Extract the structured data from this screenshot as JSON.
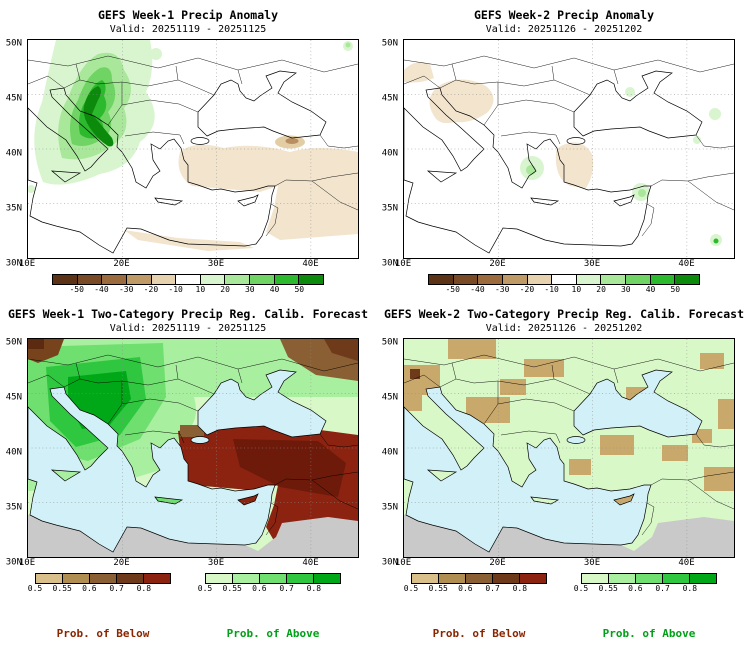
{
  "panels": [
    {
      "title": "GEFS Week-1 Precip Anomaly",
      "valid": "Valid: 20251119 - 20251125"
    },
    {
      "title": "GEFS Week-2 Precip Anomaly",
      "valid": "Valid: 20251126 - 20251202"
    },
    {
      "title": "GEFS Week-1 Two-Category Precip Reg. Calib. Forecast",
      "valid": "Valid: 20251119 - 20251125"
    },
    {
      "title": "GEFS Week-2 Two-Category Precip Reg. Calib. Forecast",
      "valid": "Valid: 20251126 - 20251202"
    }
  ],
  "axes": {
    "lat_ticks": [
      "50N",
      "45N",
      "40N",
      "35N",
      "30N"
    ],
    "lon_ticks": [
      "10E",
      "20E",
      "30E",
      "40E"
    ]
  },
  "anomaly_colorbar": {
    "tick_labels": [
      "-50",
      "-40",
      "-30",
      "-20",
      "-10",
      "10",
      "20",
      "30",
      "40",
      "50"
    ],
    "colors": [
      "#5c3317",
      "#7a4a26",
      "#9c6b3d",
      "#c09a66",
      "#e6d2ae",
      "#ffffff",
      "#d9f5cf",
      "#a9e79b",
      "#6fd463",
      "#2db92d",
      "#0b8a0b"
    ]
  },
  "prob_colorbar": {
    "tick_labels": [
      "0.5",
      "0.55",
      "0.6",
      "0.7",
      "0.8"
    ],
    "below_colors": [
      "#d9bf8a",
      "#b08d50",
      "#8a5f33",
      "#6e3a1a",
      "#8b2310"
    ],
    "above_colors": [
      "#d9f8c8",
      "#a9efa0",
      "#6fdf6f",
      "#2fc73f",
      "#00a818"
    ]
  },
  "prob_labels": {
    "below": "Prob. of Below",
    "above": "Prob. of Above",
    "below_color": "#8b2500",
    "above_color": "#00a018"
  }
}
